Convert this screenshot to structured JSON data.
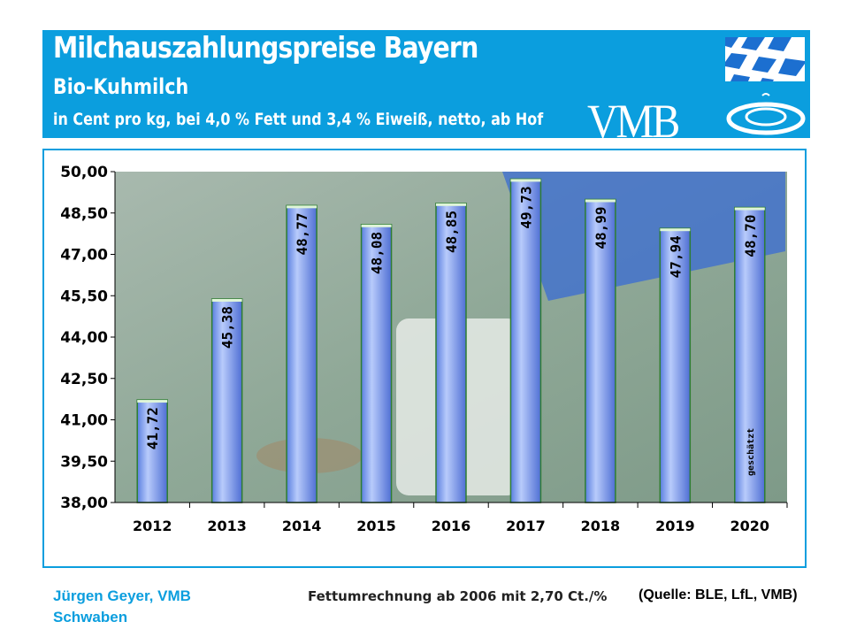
{
  "header": {
    "title": "Milchauszahlungspreise Bayern",
    "subtitle": "Bio-Kuhmilch",
    "unit_line": "in Cent pro kg, bei 4,0 % Fett und 3,4 % Eiweiß, netto, ab Hof",
    "logo_text": "VMB"
  },
  "colors": {
    "header": "#0b9ede",
    "bar": "#7f9ef0",
    "bar_outline": "#2e7d32"
  },
  "chart_data": {
    "type": "bar",
    "categories": [
      "2012",
      "2013",
      "2014",
      "2015",
      "2016",
      "2017",
      "2018",
      "2019",
      "2020"
    ],
    "values": [
      41.72,
      45.38,
      48.77,
      48.08,
      48.85,
      49.73,
      48.99,
      47.94,
      48.7
    ],
    "labels": [
      "41,72",
      "45,38",
      "48,77",
      "48,08",
      "48,85",
      "49,73",
      "48,99",
      "47,94",
      "48,70"
    ],
    "annotation": {
      "category": "2020",
      "text": "geschätzt"
    },
    "ylim": [
      38,
      50
    ],
    "yticks": [
      "38,00",
      "39,50",
      "41,00",
      "42,50",
      "44,00",
      "45,50",
      "47,00",
      "48,50",
      "50,00"
    ],
    "grid": false
  },
  "footer": {
    "author_line1": "Jürgen Geyer, VMB",
    "author_line2": "Schwaben",
    "note": "Fettumrechnung ab  2006 mit 2,70 Ct./%",
    "source": "(Quelle: BLE, LfL, VMB)"
  }
}
